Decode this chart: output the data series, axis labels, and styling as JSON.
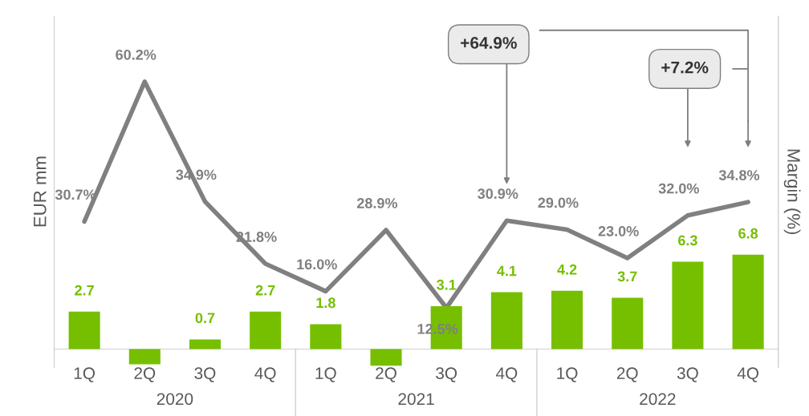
{
  "chart_data": {
    "type": "bar",
    "categories": [
      "1Q",
      "2Q",
      "3Q",
      "4Q",
      "1Q",
      "2Q",
      "3Q",
      "4Q",
      "1Q",
      "2Q",
      "3Q",
      "4Q"
    ],
    "series": [
      {
        "color": "#76bf00",
        "values": [
          2.7,
          -1.1,
          0.7,
          2.7,
          1.8,
          -1.2,
          3.1,
          4.1,
          4.2,
          3.7,
          6.3,
          6.8
        ],
        "value_labels": [
          "2.7",
          null,
          "0.7",
          "2.7",
          "1.8",
          null,
          "3.1",
          "4.1",
          "4.2",
          "3.7",
          "6.3",
          "6.8"
        ]
      },
      {
        "type": "line",
        "axis": "y2",
        "color": "#808080",
        "values": [
          30.7,
          60.2,
          34.9,
          21.8,
          16.0,
          28.9,
          12.5,
          30.9,
          29.0,
          23.0,
          32.0,
          34.8
        ],
        "value_labels": [
          "30.7%",
          "60.2%",
          "34.9%",
          "21.8%",
          "16.0%",
          "28.9%",
          "12.5%",
          "30.9%",
          "29.0%",
          "23.0%",
          "32.0%",
          "34.8%"
        ]
      }
    ],
    "ylim": [
      -1.3,
      24
    ],
    "y2lim": [
      0,
      74
    ],
    "ylabel": "EUR mm",
    "y2label": "Margin (%)",
    "tick_labels": "x",
    "annotations": [
      "+64.9%",
      "+7.2%",
      "2020",
      "2021",
      "2022"
    ]
  }
}
